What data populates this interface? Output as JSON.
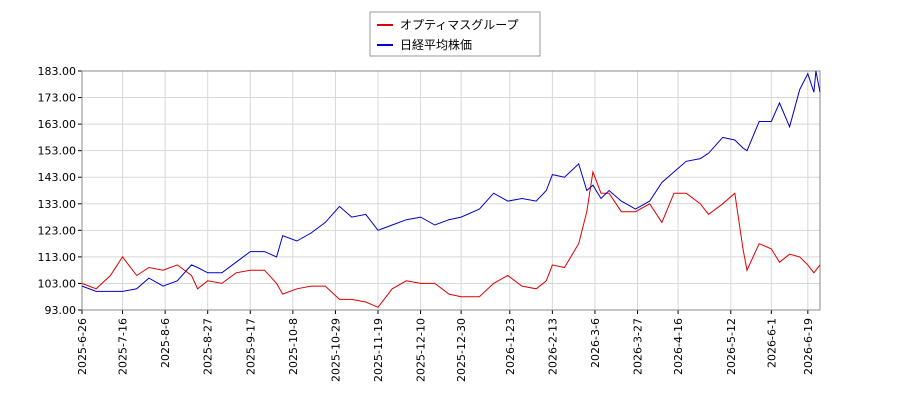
{
  "chart_data": {
    "type": "line",
    "x": [
      "2025-6-26",
      "2025-7-3",
      "2025-7-10",
      "2025-7-16",
      "2025-7-23",
      "2025-7-29",
      "2025-8-5",
      "2025-8-12",
      "2025-8-19",
      "2025-8-22",
      "2025-8-27",
      "2025-9-3",
      "2025-9-10",
      "2025-9-17",
      "2025-9-24",
      "2025-9-30",
      "2025-10-3",
      "2025-10-10",
      "2025-10-17",
      "2025-10-24",
      "2025-10-31",
      "2025-11-6",
      "2025-11-13",
      "2025-11-19",
      "2025-11-26",
      "2025-12-3",
      "2025-12-10",
      "2025-12-17",
      "2025-12-24",
      "2025-12-30",
      "2026-1-8",
      "2026-1-15",
      "2026-1-22",
      "2026-1-29",
      "2026-2-5",
      "2026-2-10",
      "2026-2-13",
      "2026-2-19",
      "2026-2-26",
      "2026-3-2",
      "2026-3-5",
      "2026-3-9",
      "2026-3-13",
      "2026-3-19",
      "2026-3-26",
      "2026-4-2",
      "2026-4-8",
      "2026-4-14",
      "2026-4-20",
      "2026-4-27",
      "2026-5-1",
      "2026-5-8",
      "2026-5-14",
      "2026-5-18",
      "2026-5-20",
      "2026-5-26",
      "2026-6-1",
      "2026-6-5",
      "2026-6-10",
      "2026-6-15",
      "2026-6-19",
      "2026-6-22",
      "2026-6-23",
      "2026-6-25"
    ],
    "series": [
      {
        "name": "オプティマスグループ",
        "color": "#dd0000",
        "values": [
          103,
          101,
          106,
          113,
          106,
          109,
          108,
          110,
          106,
          101,
          104,
          103,
          107,
          108,
          108,
          103,
          99,
          101,
          102,
          102,
          97,
          97,
          96,
          94,
          101,
          104,
          103,
          103,
          99,
          98,
          98,
          103,
          106,
          102,
          101,
          104,
          110,
          109,
          118,
          130,
          145,
          137,
          137,
          130,
          130,
          133,
          126,
          137,
          137,
          133,
          129,
          133,
          137,
          116,
          108,
          118,
          116,
          111,
          114,
          113,
          110,
          107,
          108,
          110
        ]
      },
      {
        "name": "日経平均株価",
        "color": "#0000cc",
        "values": [
          102,
          100,
          100,
          100,
          101,
          105,
          102,
          104,
          110,
          109,
          107,
          107,
          111,
          115,
          115,
          113,
          121,
          119,
          122,
          126,
          132,
          128,
          129,
          123,
          125,
          127,
          128,
          125,
          127,
          128,
          131,
          137,
          134,
          135,
          134,
          138,
          144,
          143,
          148,
          138,
          140,
          135,
          138,
          134,
          131,
          134,
          141,
          145,
          149,
          150,
          152,
          158,
          157,
          154,
          153,
          164,
          164,
          171,
          162,
          176,
          182,
          175,
          183,
          175
        ]
      }
    ],
    "xlim": [
      "2025-6-26",
      "2026-6-25"
    ],
    "xticks": [
      "2025-6-26",
      "2025-7-16",
      "2025-8-6",
      "2025-8-27",
      "2025-9-17",
      "2025-10-8",
      "2025-10-29",
      "2025-11-19",
      "2025-12-10",
      "2025-12-30",
      "2026-1-23",
      "2026-2-13",
      "2026-3-6",
      "2026-3-27",
      "2026-4-16",
      "2026-5-12",
      "2026-6-1",
      "2026-6-19"
    ],
    "ylim": [
      93,
      183
    ],
    "yticks": [
      {
        "value": 93,
        "label": "93.00"
      },
      {
        "value": 103,
        "label": "103.00"
      },
      {
        "value": 113,
        "label": "113.00"
      },
      {
        "value": 123,
        "label": "123.00"
      },
      {
        "value": 133,
        "label": "133.00"
      },
      {
        "value": 143,
        "label": "143.00"
      },
      {
        "value": 153,
        "label": "153.00"
      },
      {
        "value": 163,
        "label": "163.00"
      },
      {
        "value": 173,
        "label": "173.00"
      },
      {
        "value": 183,
        "label": "183.00"
      }
    ],
    "grid": true
  }
}
